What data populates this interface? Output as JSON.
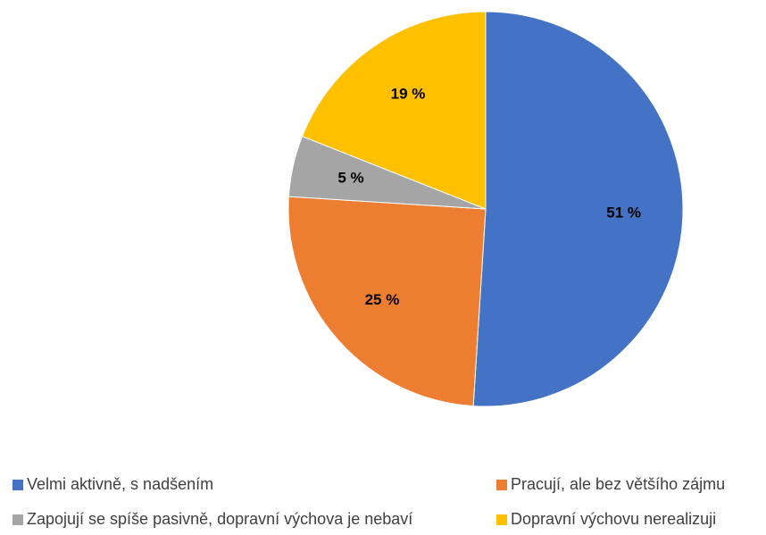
{
  "chart_data": {
    "type": "pie",
    "categories": [
      "Velmi aktivně, s nadšením",
      "Pracují, ale bez většího zájmu",
      "Zapojují se spíše pasivně, dopravní výchova je nebaví",
      "Dopravní výchovu nerealizuji"
    ],
    "values": [
      51,
      25,
      5,
      19
    ],
    "value_labels": [
      "51 %",
      "25 %",
      "5 %",
      "19 %"
    ],
    "colors": [
      "#4472c4",
      "#ed7d31",
      "#a5a5a5",
      "#ffc000"
    ]
  }
}
